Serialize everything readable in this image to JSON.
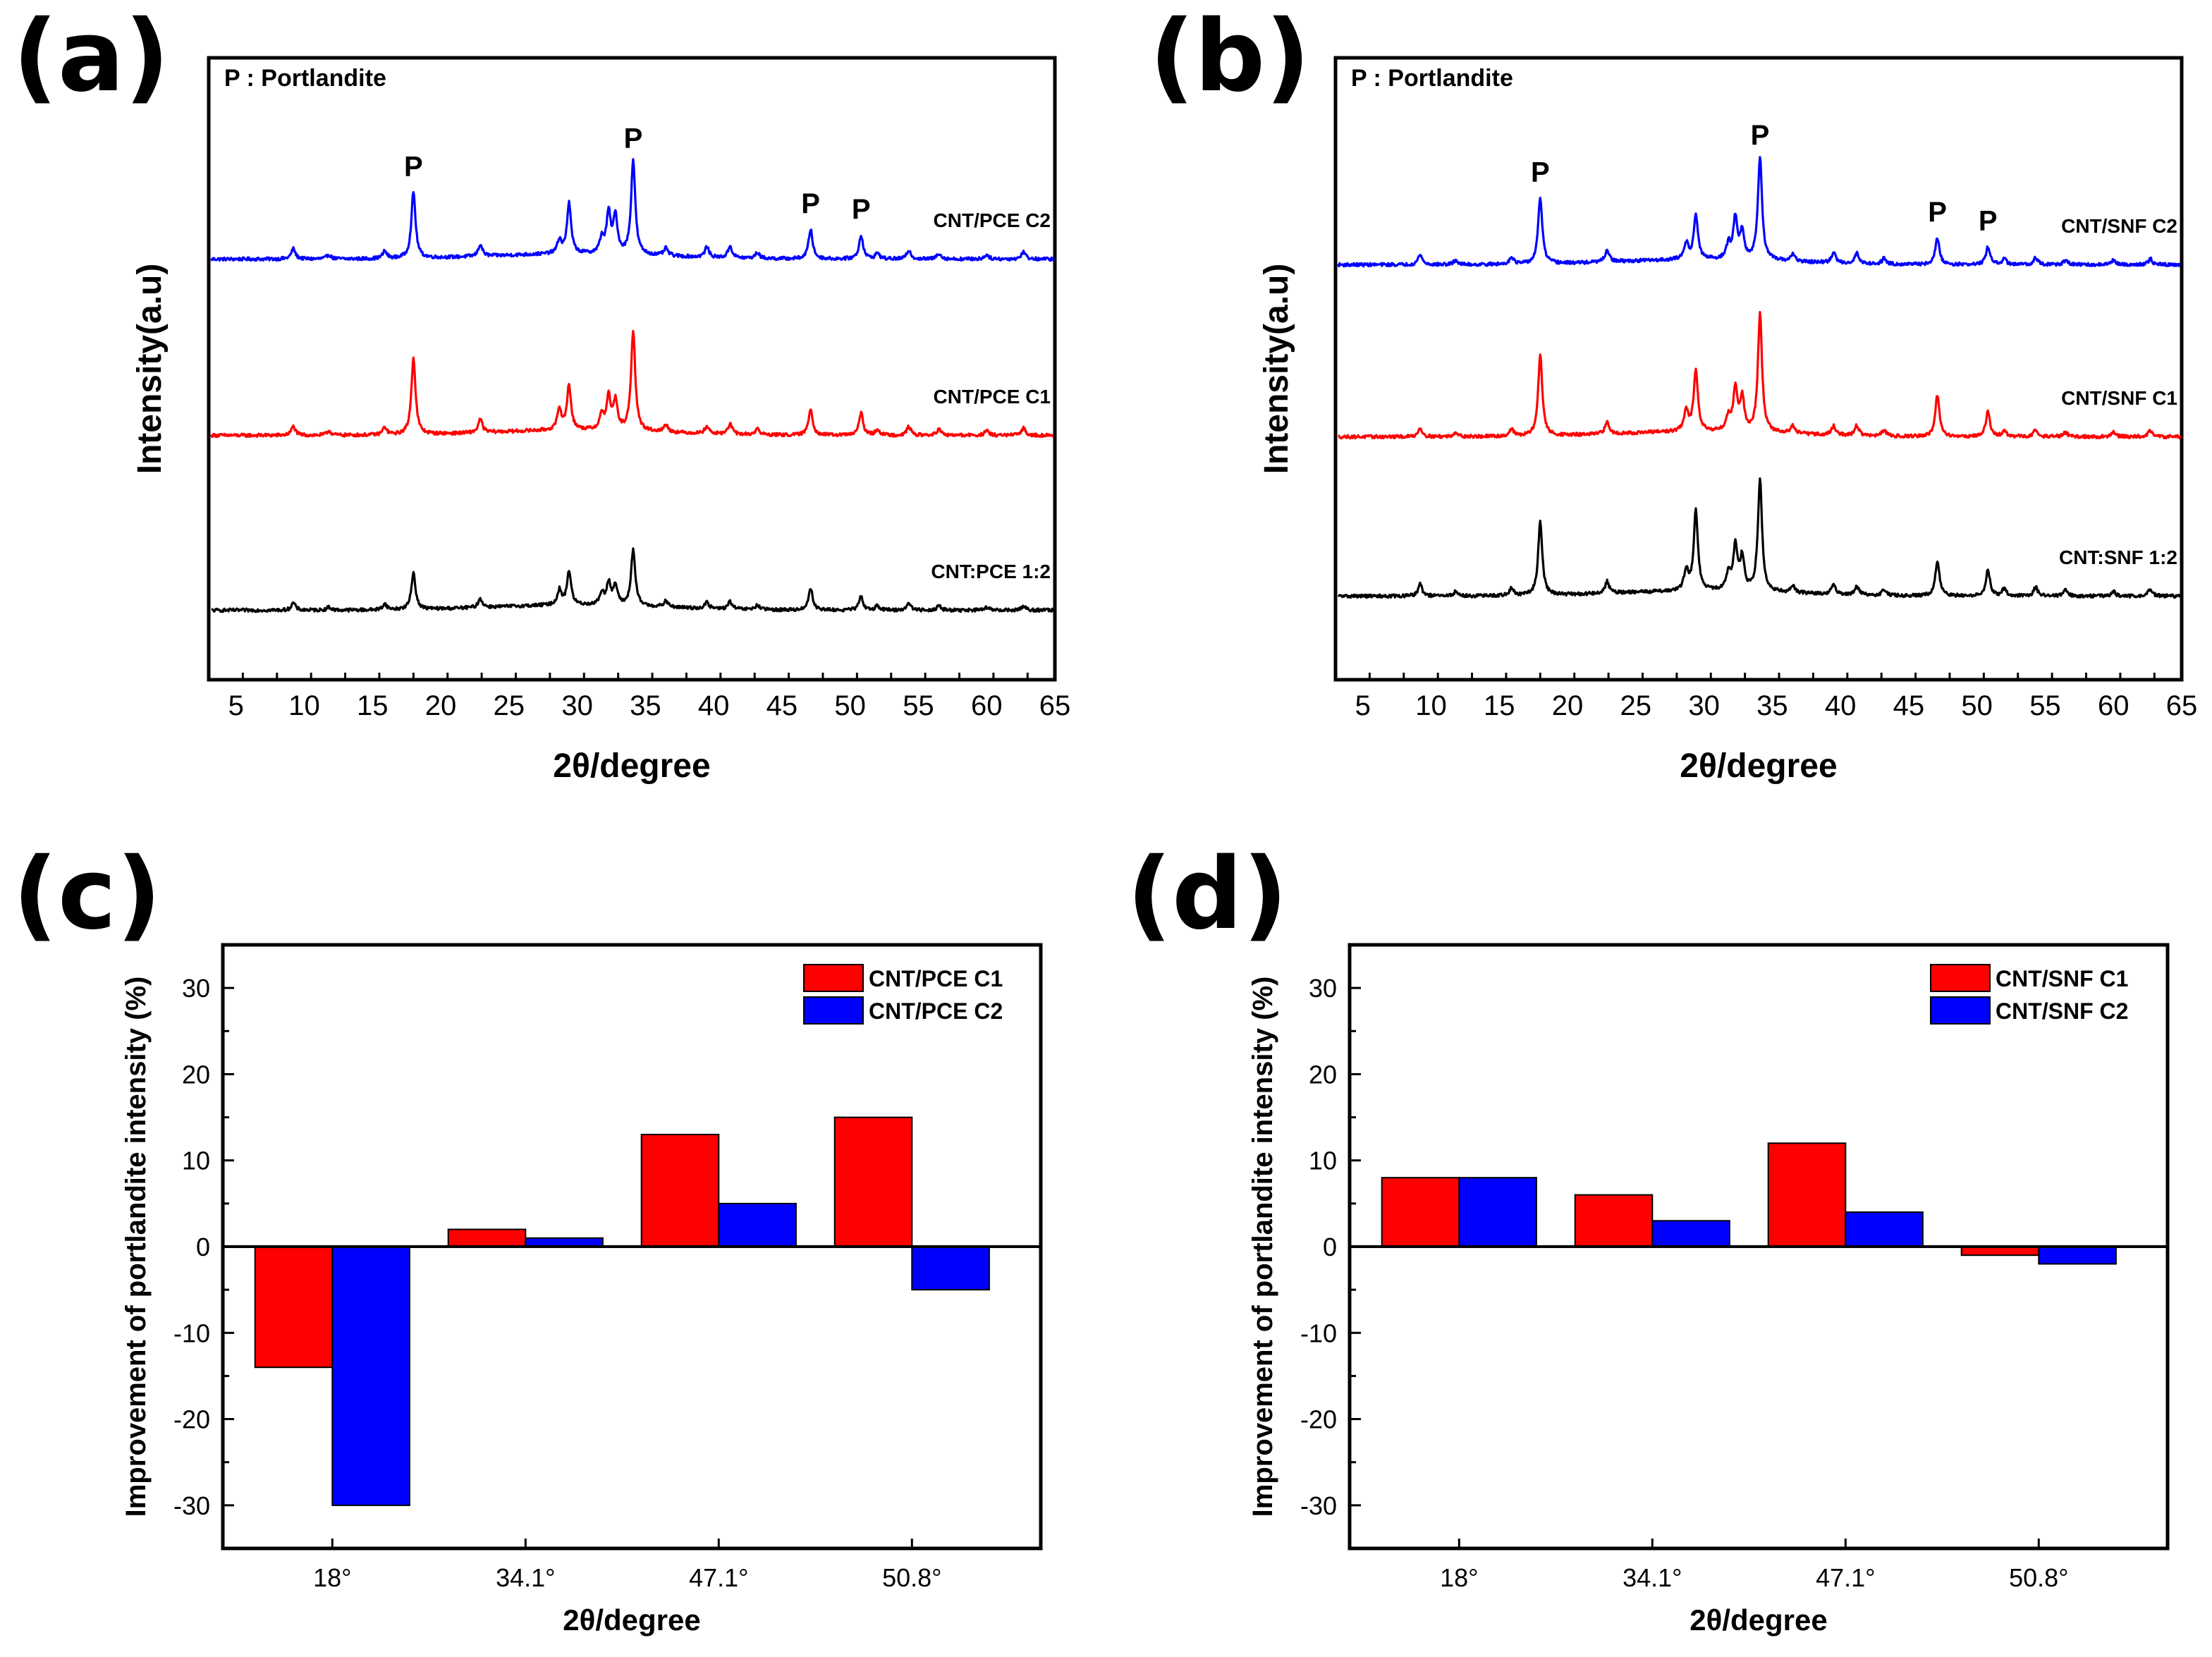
{
  "chart_data": [
    {
      "id": "a",
      "panel_label": "(a)",
      "type": "line",
      "legend_note": "P : Portlandite",
      "xlabel": "2θ/degree",
      "ylabel": "Intensity(a.u)",
      "xlim": [
        3,
        65
      ],
      "xticks": [
        5,
        10,
        15,
        20,
        25,
        30,
        35,
        40,
        45,
        50,
        55,
        60,
        65
      ],
      "grid": false,
      "peak_marker_label": "P",
      "peak_markers": [
        18.0,
        34.1,
        47.1,
        50.8
      ],
      "series": [
        {
          "name": "CNT/PCE C2",
          "color": "#0000ff",
          "baseline": 0.78,
          "peaks": [
            [
              9.2,
              0.07
            ],
            [
              11.8,
              0.03
            ],
            [
              15.9,
              0.05
            ],
            [
              18.0,
              0.45
            ],
            [
              22.9,
              0.08
            ],
            [
              28.7,
              0.09
            ],
            [
              29.4,
              0.34
            ],
            [
              31.8,
              0.1
            ],
            [
              32.3,
              0.27
            ],
            [
              32.8,
              0.25
            ],
            [
              34.1,
              0.64
            ],
            [
              36.5,
              0.05
            ],
            [
              39.5,
              0.07
            ],
            [
              41.2,
              0.08
            ],
            [
              43.2,
              0.04
            ],
            [
              47.1,
              0.2
            ],
            [
              50.8,
              0.16
            ],
            [
              52.0,
              0.04
            ],
            [
              54.3,
              0.06
            ],
            [
              56.5,
              0.04
            ],
            [
              60.0,
              0.03
            ],
            [
              62.7,
              0.05
            ]
          ]
        },
        {
          "name": "CNT/PCE C1",
          "color": "#ff0000",
          "baseline": 0.42,
          "peaks": [
            [
              9.2,
              0.06
            ],
            [
              11.8,
              0.03
            ],
            [
              15.9,
              0.05
            ],
            [
              18.0,
              0.52
            ],
            [
              22.9,
              0.09
            ],
            [
              28.7,
              0.14
            ],
            [
              29.4,
              0.3
            ],
            [
              31.8,
              0.1
            ],
            [
              32.3,
              0.22
            ],
            [
              32.8,
              0.19
            ],
            [
              34.1,
              0.68
            ],
            [
              36.5,
              0.05
            ],
            [
              39.5,
              0.05
            ],
            [
              41.2,
              0.07
            ],
            [
              43.2,
              0.04
            ],
            [
              47.1,
              0.18
            ],
            [
              50.8,
              0.15
            ],
            [
              52.0,
              0.04
            ],
            [
              54.3,
              0.06
            ],
            [
              56.5,
              0.04
            ],
            [
              60.0,
              0.03
            ],
            [
              62.7,
              0.05
            ]
          ]
        },
        {
          "name": "CNT:PCE 1:2",
          "color": "#000000",
          "baseline": 0.0,
          "peaks": [
            [
              9.2,
              0.05
            ],
            [
              11.8,
              0.02
            ],
            [
              15.9,
              0.04
            ],
            [
              18.0,
              0.25
            ],
            [
              22.9,
              0.06
            ],
            [
              28.7,
              0.1
            ],
            [
              29.4,
              0.23
            ],
            [
              31.8,
              0.08
            ],
            [
              32.3,
              0.15
            ],
            [
              32.8,
              0.13
            ],
            [
              34.1,
              0.38
            ],
            [
              36.5,
              0.04
            ],
            [
              39.5,
              0.04
            ],
            [
              41.2,
              0.05
            ],
            [
              43.2,
              0.03
            ],
            [
              47.1,
              0.15
            ],
            [
              50.8,
              0.09
            ],
            [
              52.0,
              0.03
            ],
            [
              54.3,
              0.05
            ],
            [
              56.5,
              0.03
            ],
            [
              60.0,
              0.02
            ],
            [
              62.7,
              0.03
            ]
          ]
        }
      ]
    },
    {
      "id": "b",
      "panel_label": "(b)",
      "type": "line",
      "legend_note": "P : Portlandite",
      "xlabel": "2θ/degree",
      "ylabel": "Intensity(a.u)",
      "xlim": [
        3,
        65
      ],
      "xticks": [
        5,
        10,
        15,
        20,
        25,
        30,
        35,
        40,
        45,
        50,
        55,
        60,
        65
      ],
      "grid": false,
      "peak_marker_label": "P",
      "peak_markers": [
        18.0,
        34.1,
        47.1,
        50.8
      ],
      "series": [
        {
          "name": "CNT/SNF C2",
          "color": "#0000ff",
          "baseline": 0.78,
          "peaks": [
            [
              9.2,
              0.07
            ],
            [
              11.8,
              0.03
            ],
            [
              15.9,
              0.05
            ],
            [
              18.0,
              0.45
            ],
            [
              22.9,
              0.08
            ],
            [
              28.7,
              0.11
            ],
            [
              29.4,
              0.3
            ],
            [
              31.8,
              0.1
            ],
            [
              32.3,
              0.28
            ],
            [
              32.8,
              0.18
            ],
            [
              34.1,
              0.7
            ],
            [
              36.5,
              0.05
            ],
            [
              39.5,
              0.07
            ],
            [
              41.2,
              0.07
            ],
            [
              43.2,
              0.04
            ],
            [
              47.1,
              0.18
            ],
            [
              50.8,
              0.12
            ],
            [
              52.0,
              0.04
            ],
            [
              54.3,
              0.05
            ],
            [
              56.5,
              0.03
            ],
            [
              60.0,
              0.03
            ],
            [
              62.7,
              0.04
            ]
          ]
        },
        {
          "name": "CNT/SNF C1",
          "color": "#ff0000",
          "baseline": 0.38,
          "peaks": [
            [
              9.2,
              0.06
            ],
            [
              11.8,
              0.03
            ],
            [
              15.9,
              0.05
            ],
            [
              18.0,
              0.55
            ],
            [
              22.9,
              0.08
            ],
            [
              28.7,
              0.14
            ],
            [
              29.4,
              0.42
            ],
            [
              31.8,
              0.1
            ],
            [
              32.3,
              0.29
            ],
            [
              32.8,
              0.22
            ],
            [
              34.1,
              0.8
            ],
            [
              36.5,
              0.05
            ],
            [
              39.5,
              0.06
            ],
            [
              41.2,
              0.07
            ],
            [
              43.2,
              0.04
            ],
            [
              47.1,
              0.28
            ],
            [
              50.8,
              0.17
            ],
            [
              52.0,
              0.04
            ],
            [
              54.3,
              0.05
            ],
            [
              56.5,
              0.03
            ],
            [
              60.0,
              0.03
            ],
            [
              62.7,
              0.04
            ]
          ]
        },
        {
          "name": "CNT:SNF 1:2",
          "color": "#000000",
          "baseline": 0.0,
          "peaks": [
            [
              9.2,
              0.08
            ],
            [
              11.8,
              0.03
            ],
            [
              15.9,
              0.05
            ],
            [
              18.0,
              0.5
            ],
            [
              22.9,
              0.08
            ],
            [
              28.7,
              0.14
            ],
            [
              29.4,
              0.54
            ],
            [
              31.8,
              0.12
            ],
            [
              32.3,
              0.3
            ],
            [
              32.8,
              0.22
            ],
            [
              34.1,
              0.76
            ],
            [
              36.5,
              0.05
            ],
            [
              39.5,
              0.07
            ],
            [
              41.2,
              0.06
            ],
            [
              43.2,
              0.04
            ],
            [
              47.1,
              0.24
            ],
            [
              50.8,
              0.18
            ],
            [
              52.0,
              0.05
            ],
            [
              54.3,
              0.06
            ],
            [
              56.5,
              0.04
            ],
            [
              60.0,
              0.03
            ],
            [
              62.7,
              0.05
            ]
          ]
        }
      ]
    },
    {
      "id": "c",
      "panel_label": "(c)",
      "type": "bar",
      "xlabel": "2θ/degree",
      "ylabel": "Improvement of portlandite intensity (%)",
      "categories": [
        "18°",
        "34.1°",
        "47.1°",
        "50.8°"
      ],
      "ylim": [
        -35,
        35
      ],
      "yticks": [
        -30,
        -20,
        -10,
        0,
        10,
        20,
        30
      ],
      "grid": false,
      "legend_position": "top-right",
      "series": [
        {
          "name": "CNT/PCE C1",
          "color": "#ff0000",
          "values": [
            -14,
            2,
            13,
            15
          ]
        },
        {
          "name": "CNT/PCE C2",
          "color": "#0000ff",
          "values": [
            -30,
            1,
            5,
            -5
          ]
        }
      ]
    },
    {
      "id": "d",
      "panel_label": "(d)",
      "type": "bar",
      "xlabel": "2θ/degree",
      "ylabel": "Improvement of portlandite intensity (%)",
      "categories": [
        "18°",
        "34.1°",
        "47.1°",
        "50.8°"
      ],
      "ylim": [
        -35,
        35
      ],
      "yticks": [
        -30,
        -20,
        -10,
        0,
        10,
        20,
        30
      ],
      "grid": false,
      "legend_position": "top-right",
      "series": [
        {
          "name": "CNT/SNF C1",
          "color": "#ff0000",
          "values": [
            8,
            6,
            12,
            -1
          ]
        },
        {
          "name": "CNT/SNF C2",
          "color": "#0000ff",
          "values": [
            8,
            3,
            4,
            -2
          ]
        }
      ]
    }
  ]
}
